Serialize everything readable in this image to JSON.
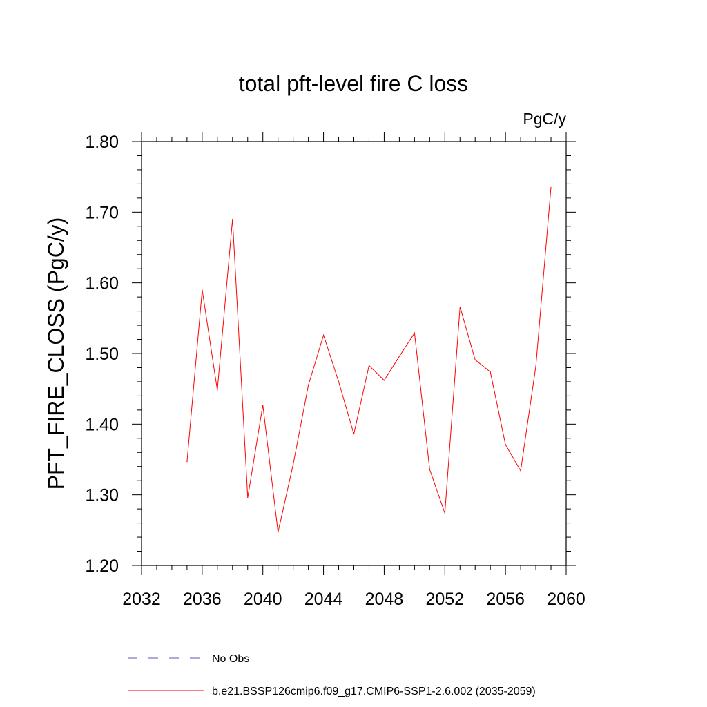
{
  "chart_data": {
    "type": "line",
    "title": "total pft-level fire C loss",
    "units_label": "PgC/y",
    "xlabel": "",
    "ylabel": "PFT_FIRE_CLOSS  (PgC/y)",
    "xlim": [
      2032,
      2060
    ],
    "ylim": [
      1.2,
      1.8
    ],
    "x_ticks": [
      2032,
      2036,
      2040,
      2044,
      2048,
      2052,
      2056,
      2060
    ],
    "x_tick_labels": [
      "2032",
      "2036",
      "2040",
      "2044",
      "2048",
      "2052",
      "2056",
      "2060"
    ],
    "y_ticks": [
      1.2,
      1.3,
      1.4,
      1.5,
      1.6,
      1.7,
      1.8
    ],
    "y_tick_labels": [
      "1.20",
      "1.30",
      "1.40",
      "1.50",
      "1.60",
      "1.70",
      "1.80"
    ],
    "grid": false,
    "legend_position": "bottom",
    "series": [
      {
        "name": "b.e21.BSSP126cmip6.f09_g17.CMIP6-SSP1-2.6.002 (2035-2059)",
        "color": "#ff0000",
        "style": "solid",
        "x": [
          2035,
          2036,
          2037,
          2038,
          2039,
          2040,
          2041,
          2042,
          2043,
          2044,
          2045,
          2046,
          2047,
          2048,
          2049,
          2050,
          2051,
          2052,
          2053,
          2054,
          2055,
          2056,
          2057,
          2058,
          2059
        ],
        "values": [
          1.347,
          1.59,
          1.448,
          1.69,
          1.296,
          1.427,
          1.247,
          1.343,
          1.455,
          1.526,
          1.46,
          1.386,
          1.483,
          1.462,
          1.496,
          1.529,
          1.336,
          1.274,
          1.566,
          1.491,
          1.474,
          1.371,
          1.334,
          1.482,
          1.735
        ]
      }
    ],
    "legend": [
      {
        "label": "No Obs",
        "color": "#5a5ab4",
        "style": "dashed"
      },
      {
        "label": "b.e21.BSSP126cmip6.f09_g17.CMIP6-SSP1-2.6.002 (2035-2059)",
        "color": "#ff0000",
        "style": "solid"
      }
    ]
  }
}
